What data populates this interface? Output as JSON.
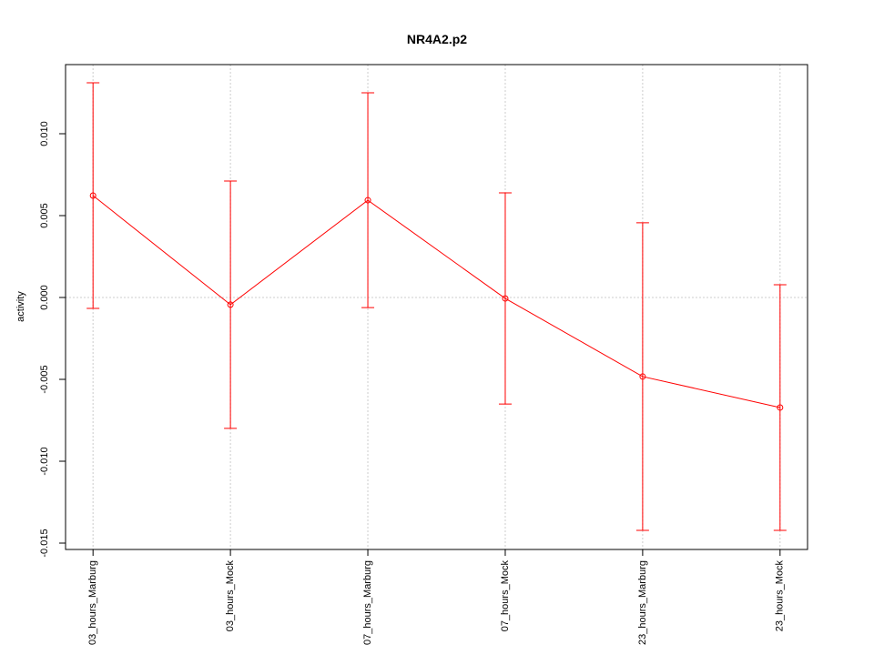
{
  "chart_data": {
    "type": "line",
    "title": "NR4A2.p2",
    "y_label": "activity",
    "categories": [
      "03_hours_Marburg",
      "03_hours_Mock",
      "07_hours_Marburg",
      "07_hours_Mock",
      "23_hours_Marburg",
      "23_hours_Mock"
    ],
    "series": [
      {
        "name": "NR4A2.p2",
        "color": "#ff0000",
        "values": [
          0.00622,
          -0.00044,
          0.00594,
          -6e-05,
          -0.00483,
          -0.00672
        ],
        "errors": [
          0.00689,
          0.00755,
          0.00656,
          0.00645,
          0.00939,
          0.0075
        ]
      }
    ],
    "ylim": [
      -0.015389,
      0.014222
    ],
    "yticks": [
      {
        "value": -0.015,
        "label": "-0.015"
      },
      {
        "value": -0.01,
        "label": "-0.010"
      },
      {
        "value": -0.005,
        "label": "-0.005"
      },
      {
        "value": 0,
        "label": "0.000"
      },
      {
        "value": 0.005,
        "label": "0.005"
      },
      {
        "value": 0.01,
        "label": "0.010"
      }
    ],
    "hline": 0,
    "grid": true
  }
}
